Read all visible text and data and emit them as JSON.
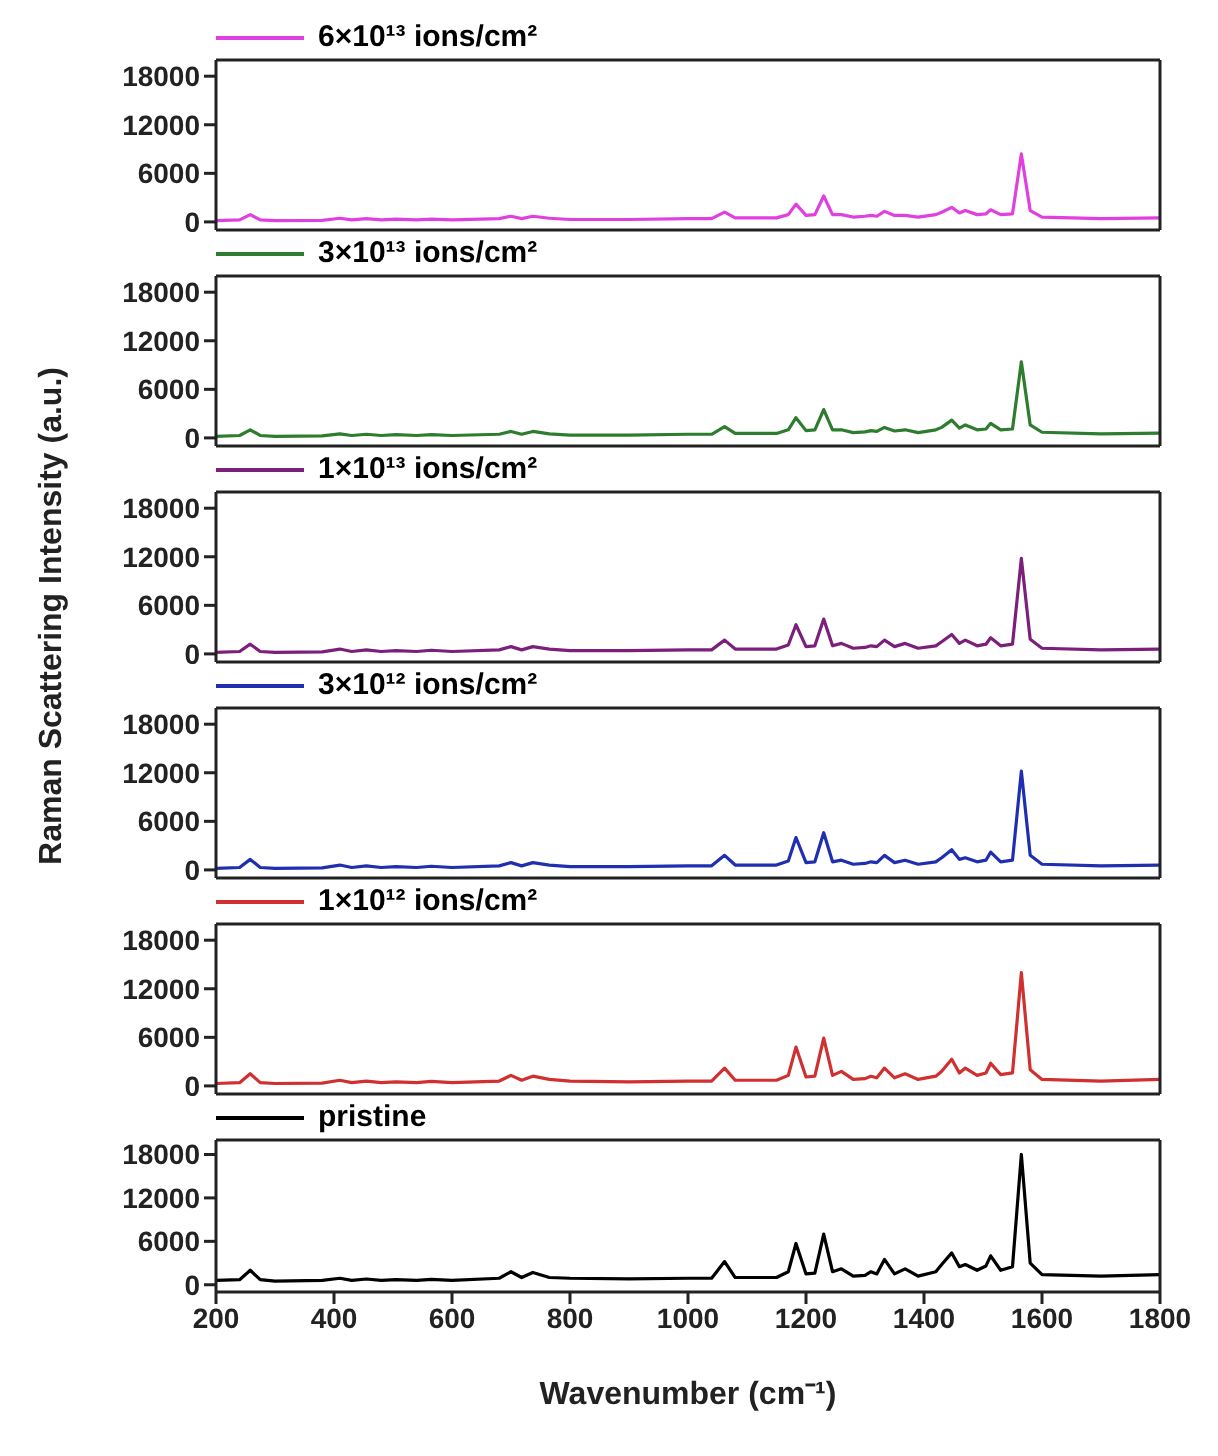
{
  "chart_data": [
    {
      "type": "line",
      "ylabel": "Raman Scattering Intensity (a.u.)",
      "legend": "top left",
      "tick_labels": "y",
      "xlim": [
        200,
        1800
      ],
      "ylim": [
        -1000,
        20000
      ],
      "yticks": [
        0,
        6000,
        12000,
        18000
      ],
      "x": [
        200,
        240,
        258,
        275,
        300,
        380,
        410,
        430,
        455,
        480,
        505,
        540,
        565,
        600,
        680,
        700,
        718,
        737,
        765,
        800,
        900,
        1000,
        1040,
        1062,
        1080,
        1150,
        1170,
        1183,
        1200,
        1215,
        1230,
        1245,
        1260,
        1280,
        1300,
        1310,
        1320,
        1333,
        1350,
        1368,
        1390,
        1420,
        1430,
        1447,
        1460,
        1470,
        1490,
        1505,
        1513,
        1530,
        1550,
        1565,
        1580,
        1600,
        1700,
        1800
      ],
      "series": [
        {
          "name": "6×10¹³ ions/cm²",
          "color": "#e040e0",
          "values": [
            150,
            250,
            900,
            250,
            150,
            200,
            450,
            250,
            400,
            250,
            350,
            250,
            350,
            250,
            400,
            700,
            400,
            700,
            450,
            300,
            300,
            400,
            400,
            1200,
            500,
            500,
            900,
            2200,
            800,
            900,
            3200,
            900,
            900,
            600,
            700,
            800,
            700,
            1300,
            800,
            800,
            600,
            900,
            1200,
            1800,
            1100,
            1400,
            900,
            1000,
            1500,
            900,
            1000,
            8400,
            1400,
            600,
            400,
            500
          ]
        }
      ]
    },
    {
      "type": "line",
      "legend": "top left",
      "tick_labels": "y",
      "xlim": [
        200,
        1800
      ],
      "ylim": [
        -1000,
        20000
      ],
      "yticks": [
        0,
        6000,
        12000,
        18000
      ],
      "x": [
        200,
        240,
        258,
        275,
        300,
        380,
        410,
        430,
        455,
        480,
        505,
        540,
        565,
        600,
        680,
        700,
        718,
        737,
        765,
        800,
        900,
        1000,
        1040,
        1062,
        1080,
        1150,
        1170,
        1183,
        1200,
        1215,
        1230,
        1245,
        1260,
        1280,
        1300,
        1310,
        1320,
        1333,
        1350,
        1368,
        1390,
        1420,
        1430,
        1447,
        1460,
        1470,
        1490,
        1505,
        1513,
        1530,
        1550,
        1565,
        1580,
        1600,
        1700,
        1800
      ],
      "series": [
        {
          "name": "3×10¹³ ions/cm²",
          "color": "#2e7d2e",
          "values": [
            200,
            300,
            1000,
            300,
            200,
            250,
            500,
            300,
            450,
            300,
            400,
            300,
            400,
            300,
            450,
            800,
            450,
            800,
            500,
            350,
            350,
            450,
            450,
            1400,
            550,
            550,
            1000,
            2500,
            900,
            1000,
            3500,
            1000,
            1000,
            650,
            750,
            900,
            800,
            1300,
            850,
            1000,
            650,
            1000,
            1300,
            2200,
            1200,
            1600,
            1000,
            1100,
            1800,
            1000,
            1100,
            9400,
            1600,
            700,
            500,
            600
          ]
        }
      ]
    },
    {
      "type": "line",
      "legend": "top left",
      "tick_labels": "y",
      "xlim": [
        200,
        1800
      ],
      "ylim": [
        -1000,
        20000
      ],
      "yticks": [
        0,
        6000,
        12000,
        18000
      ],
      "x": [
        200,
        240,
        258,
        275,
        300,
        380,
        410,
        430,
        455,
        480,
        505,
        540,
        565,
        600,
        680,
        700,
        718,
        737,
        765,
        800,
        900,
        1000,
        1040,
        1062,
        1080,
        1150,
        1170,
        1183,
        1200,
        1215,
        1230,
        1245,
        1260,
        1280,
        1300,
        1310,
        1320,
        1333,
        1350,
        1368,
        1390,
        1420,
        1430,
        1447,
        1460,
        1470,
        1490,
        1505,
        1513,
        1530,
        1550,
        1565,
        1580,
        1600,
        1700,
        1800
      ],
      "series": [
        {
          "name": "1×10¹³ ions/cm²",
          "color": "#7b1f7b",
          "values": [
            200,
            300,
            1200,
            300,
            200,
            250,
            600,
            300,
            500,
            300,
            400,
            300,
            450,
            300,
            500,
            900,
            500,
            900,
            600,
            400,
            400,
            500,
            500,
            1700,
            600,
            600,
            1100,
            3600,
            900,
            1000,
            4300,
            1000,
            1300,
            700,
            800,
            1000,
            900,
            1700,
            900,
            1300,
            700,
            1000,
            1500,
            2400,
            1300,
            1700,
            1000,
            1200,
            2000,
            1000,
            1200,
            11800,
            1800,
            700,
            500,
            600
          ]
        }
      ]
    },
    {
      "type": "line",
      "legend": "top left",
      "tick_labels": "y",
      "xlim": [
        200,
        1800
      ],
      "ylim": [
        -1000,
        20000
      ],
      "yticks": [
        0,
        6000,
        12000,
        18000
      ],
      "x": [
        200,
        240,
        258,
        275,
        300,
        380,
        410,
        430,
        455,
        480,
        505,
        540,
        565,
        600,
        680,
        700,
        718,
        737,
        765,
        800,
        900,
        1000,
        1040,
        1062,
        1080,
        1150,
        1170,
        1183,
        1200,
        1215,
        1230,
        1245,
        1260,
        1280,
        1300,
        1310,
        1320,
        1333,
        1350,
        1368,
        1390,
        1420,
        1430,
        1447,
        1460,
        1470,
        1490,
        1505,
        1513,
        1530,
        1550,
        1565,
        1580,
        1600,
        1700,
        1800
      ],
      "series": [
        {
          "name": "3×10¹² ions/cm²",
          "color": "#1f2fb0",
          "values": [
            200,
            300,
            1300,
            300,
            200,
            250,
            600,
            300,
            500,
            300,
            400,
            300,
            450,
            300,
            500,
            900,
            500,
            900,
            600,
            400,
            400,
            500,
            500,
            1800,
            600,
            600,
            1100,
            4000,
            900,
            1000,
            4600,
            1000,
            1200,
            700,
            800,
            1000,
            900,
            1800,
            900,
            1200,
            700,
            1000,
            1500,
            2500,
            1300,
            1500,
            1000,
            1200,
            2200,
            1000,
            1200,
            12200,
            1800,
            700,
            500,
            600
          ]
        }
      ]
    },
    {
      "type": "line",
      "legend": "top left",
      "tick_labels": "y",
      "xlim": [
        200,
        1800
      ],
      "ylim": [
        -1000,
        20000
      ],
      "yticks": [
        0,
        6000,
        12000,
        18000
      ],
      "x": [
        200,
        240,
        258,
        275,
        300,
        380,
        410,
        430,
        455,
        480,
        505,
        540,
        565,
        600,
        680,
        700,
        718,
        737,
        765,
        800,
        900,
        1000,
        1040,
        1062,
        1080,
        1150,
        1170,
        1183,
        1200,
        1215,
        1230,
        1245,
        1260,
        1280,
        1300,
        1310,
        1320,
        1333,
        1350,
        1368,
        1390,
        1420,
        1430,
        1447,
        1460,
        1470,
        1490,
        1505,
        1513,
        1530,
        1550,
        1565,
        1580,
        1600,
        1700,
        1800
      ],
      "series": [
        {
          "name": "1×10¹² ions/cm²",
          "color": "#d03030",
          "values": [
            300,
            400,
            1500,
            400,
            300,
            350,
            700,
            400,
            600,
            400,
            500,
            400,
            550,
            400,
            600,
            1300,
            700,
            1200,
            800,
            600,
            500,
            600,
            600,
            2200,
            700,
            700,
            1300,
            4800,
            1100,
            1200,
            5900,
            1300,
            1800,
            800,
            900,
            1200,
            1000,
            2200,
            1000,
            1500,
            800,
            1200,
            1800,
            3300,
            1600,
            2200,
            1300,
            1600,
            2800,
            1400,
            1600,
            14000,
            2000,
            800,
            600,
            800
          ]
        }
      ]
    },
    {
      "type": "line",
      "xlabel": "Wavenumber (cm⁻¹)",
      "legend": "top left",
      "xlim": [
        200,
        1800
      ],
      "ylim": [
        -1000,
        20000
      ],
      "yticks": [
        0,
        6000,
        12000,
        18000
      ],
      "xticks": [
        200,
        400,
        600,
        800,
        1000,
        1200,
        1400,
        1600,
        1800
      ],
      "x": [
        200,
        240,
        258,
        275,
        300,
        380,
        410,
        430,
        455,
        480,
        505,
        540,
        565,
        600,
        680,
        700,
        718,
        737,
        765,
        800,
        900,
        1000,
        1040,
        1062,
        1080,
        1150,
        1170,
        1183,
        1200,
        1215,
        1230,
        1245,
        1260,
        1280,
        1300,
        1310,
        1320,
        1333,
        1350,
        1368,
        1390,
        1420,
        1430,
        1447,
        1460,
        1470,
        1490,
        1505,
        1513,
        1530,
        1550,
        1565,
        1580,
        1600,
        1700,
        1800
      ],
      "series": [
        {
          "name": "pristine",
          "color": "#000000",
          "values": [
            600,
            700,
            2000,
            700,
            500,
            600,
            900,
            600,
            800,
            600,
            700,
            600,
            750,
            600,
            900,
            1800,
            1000,
            1700,
            1000,
            900,
            800,
            900,
            900,
            3200,
            1000,
            1000,
            1800,
            5700,
            1500,
            1600,
            7000,
            1800,
            2200,
            1200,
            1300,
            1800,
            1500,
            3500,
            1500,
            2200,
            1200,
            1800,
            2800,
            4400,
            2500,
            2800,
            2000,
            2600,
            4000,
            2000,
            2500,
            18000,
            3000,
            1400,
            1200,
            1400
          ]
        }
      ]
    }
  ]
}
